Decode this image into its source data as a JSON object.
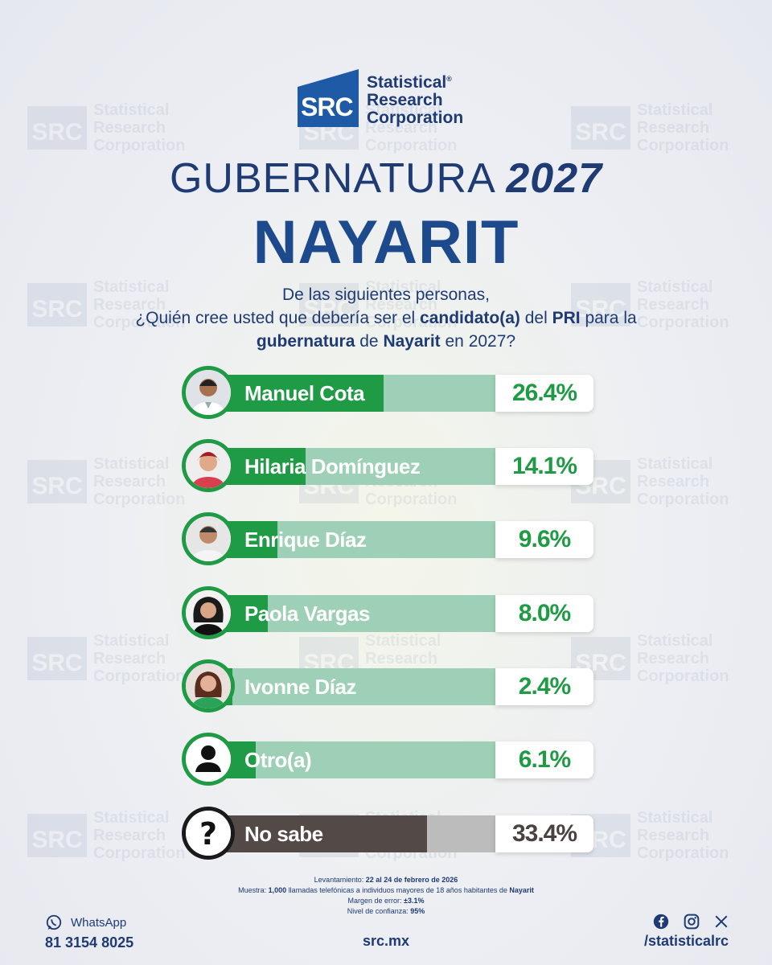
{
  "logo": {
    "mark": "SRC",
    "line1": "Statistical",
    "line2": "Research",
    "line3": "Corporation",
    "reg": "®"
  },
  "watermark": {
    "mark": "SRC",
    "line1": "Statistical",
    "line2": "Research",
    "line3": "Corporation"
  },
  "header": {
    "title_light": "GUBERNATURA",
    "title_year": "2027",
    "state": "NAYARIT"
  },
  "question": {
    "p1": "De las siguientes personas,",
    "p2": "¿Quién cree usted que debería ser el",
    "p3": "candidato(a)",
    "p4": "del",
    "p5": "PRI",
    "p6": "para la",
    "p7": "gubernatura",
    "p8": "de",
    "p9": "Nayarit",
    "p10": "en 2027?"
  },
  "chart_data": {
    "type": "bar",
    "title": "GUBERNATURA 2027 NAYARIT",
    "categories": [
      "Manuel Cota",
      "Hilaria Domínguez",
      "Enrique Díaz",
      "Paola Vargas",
      "Ivonne Díaz",
      "Otro(a)",
      "No sabe"
    ],
    "values": [
      26.4,
      14.1,
      9.6,
      8.0,
      2.4,
      6.1,
      33.4
    ],
    "labels": [
      "26.4%",
      "14.1%",
      "9.6%",
      "8.0%",
      "2.4%",
      "6.1%",
      "33.4%"
    ],
    "ylabel": "%",
    "ylim": [
      0,
      45
    ]
  },
  "colors": {
    "green": "#1f9a45",
    "light_green": "#9dd0b6",
    "navy": "#1f3b74",
    "dark_gray": "#534a48"
  },
  "notes": {
    "l1_label": "Levantamiento:",
    "l1_value": "22 al 24 de febrero de 2026",
    "l2_label": "Muestra:",
    "l2_value": "1,000",
    "l2_mid": "llamadas telefónicas a individuos mayores de 18 años habitantes de",
    "l2_state": "Nayarit",
    "l3_label": "Margen de error:",
    "l3_value": "±3.1%",
    "l4_label": "Nivel de confianza:",
    "l4_value": "95%"
  },
  "contact": {
    "whatsapp_label": "WhatsApp",
    "whatsapp_number": "81 3154 8025",
    "site": "src.mx",
    "handle": "/statisticalrc"
  }
}
